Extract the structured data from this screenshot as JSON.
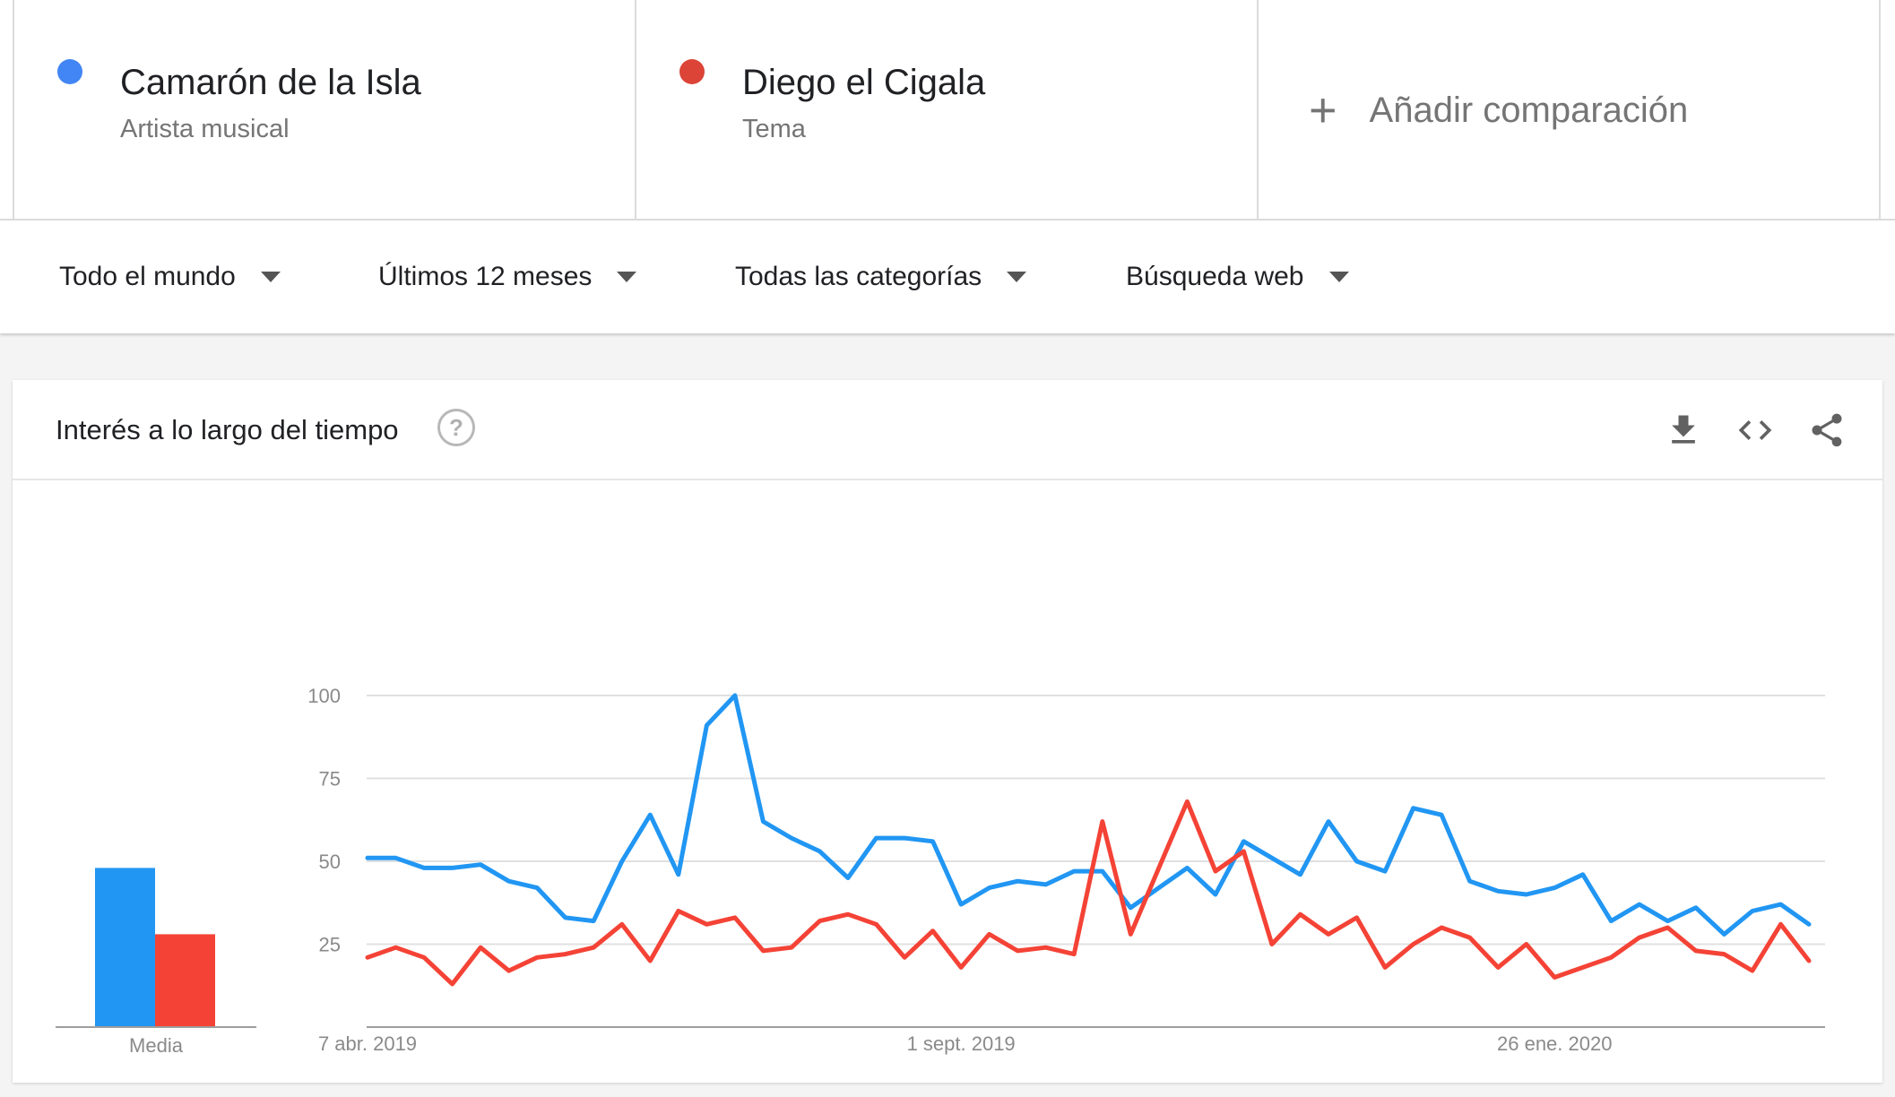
{
  "comparison": {
    "terms": [
      {
        "name": "Camarón de la Isla",
        "type": "Artista musical",
        "color": "#4285f4"
      },
      {
        "name": "Diego el Cigala",
        "type": "Tema",
        "color": "#db4437"
      }
    ],
    "add_label": "Añadir comparación"
  },
  "filters": [
    {
      "label": "Todo el mundo"
    },
    {
      "label": "Últimos 12 meses"
    },
    {
      "label": "Todas las categorías"
    },
    {
      "label": "Búsqueda web"
    }
  ],
  "card": {
    "title": "Interés a lo largo del tiempo",
    "help_icon": "help-circle-icon",
    "tools": [
      "download-icon",
      "embed-code-icon",
      "share-icon"
    ]
  },
  "chart_data": {
    "type": "line",
    "ylim": [
      0,
      100
    ],
    "yticks": [
      25,
      50,
      75,
      100
    ],
    "x_tick_labels": [
      "7 abr. 2019",
      "1 sept. 2019",
      "26 ene. 2020"
    ],
    "x_tick_index": [
      0,
      21,
      42
    ],
    "average_label": "Media",
    "average_values": [
      48,
      28
    ],
    "series": [
      {
        "name": "Camarón de la Isla",
        "color": "#2196f3",
        "values": [
          51,
          51,
          48,
          48,
          49,
          44,
          42,
          33,
          32,
          50,
          64,
          46,
          91,
          100,
          62,
          57,
          53,
          45,
          57,
          57,
          56,
          37,
          42,
          44,
          43,
          47,
          47,
          36,
          42,
          48,
          40,
          56,
          51,
          46,
          62,
          50,
          47,
          66,
          64,
          44,
          41,
          40,
          42,
          46,
          32,
          37,
          32,
          36,
          28,
          35,
          37,
          31
        ]
      },
      {
        "name": "Diego el Cigala",
        "color": "#f44336",
        "values": [
          21,
          24,
          21,
          13,
          24,
          17,
          21,
          22,
          24,
          31,
          20,
          35,
          31,
          33,
          23,
          24,
          32,
          34,
          31,
          21,
          29,
          18,
          28,
          23,
          24,
          22,
          62,
          28,
          48,
          68,
          47,
          53,
          25,
          34,
          28,
          33,
          18,
          25,
          30,
          27,
          18,
          25,
          15,
          18,
          21,
          27,
          30,
          23,
          22,
          17,
          31,
          20
        ]
      }
    ]
  }
}
